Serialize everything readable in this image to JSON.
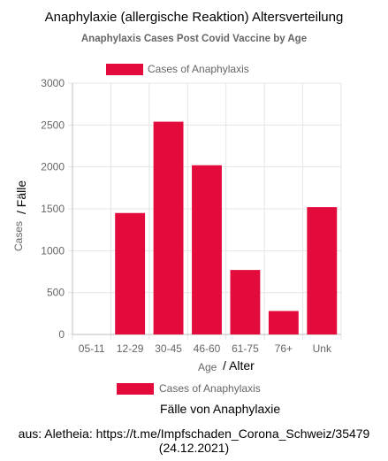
{
  "header": {
    "headline": "Anaphylaxie (allergische Reaktion)  Altersverteilung"
  },
  "axes": {
    "ylabel_de": "/ Fälle",
    "xlabel_de": "/ Alter"
  },
  "legend_de": "Fälle von Anaphylaxie",
  "source": {
    "line1": "aus: Aletheia: https://t.me/Impfschaden_Corona_Schweiz/35479",
    "line2": "(24.12.2021)"
  },
  "colors": {
    "bar": "#e30b3c",
    "grid": "#e5e5e5",
    "axis_text": "#666666"
  },
  "chart_data": {
    "type": "bar",
    "title": "Anaphylaxis Cases Post Covid Vaccine by Age",
    "xlabel": "Age",
    "ylabel": "Cases",
    "categories": [
      "05-11",
      "12-29",
      "30-45",
      "46-60",
      "61-75",
      "76+",
      "Unk"
    ],
    "series": [
      {
        "name": "Cases of Anaphylaxis",
        "values": [
          0,
          1450,
          2540,
          2020,
          770,
          280,
          1520
        ]
      }
    ],
    "ylim": [
      0,
      3000
    ],
    "yticks": [
      0,
      500,
      1000,
      1500,
      2000,
      2500,
      3000
    ],
    "grid": true,
    "legend_position": "top"
  }
}
